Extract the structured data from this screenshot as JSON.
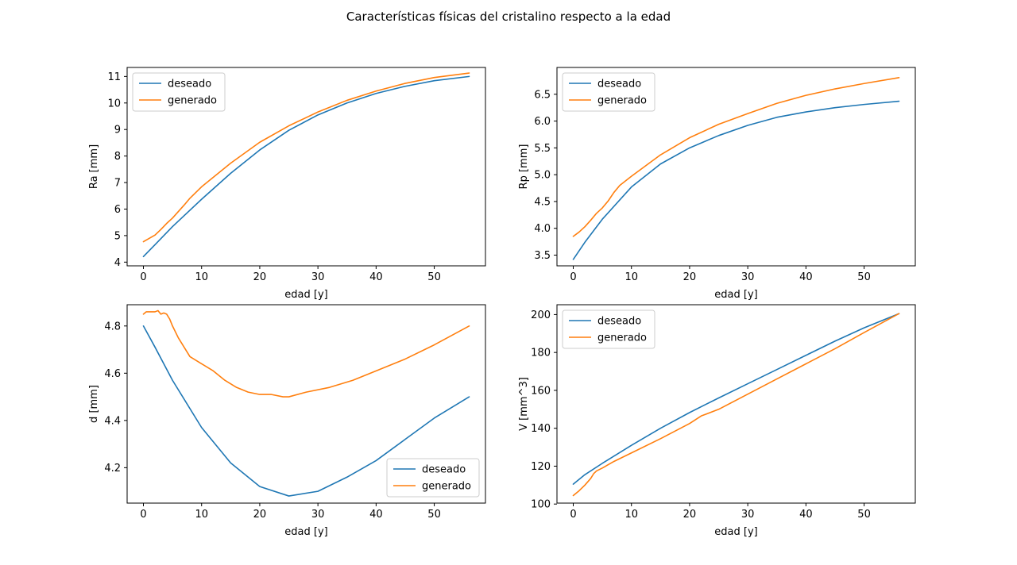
{
  "figure": {
    "title": "Características físicas del cristalino respecto a la edad"
  },
  "colors": {
    "deseado": "#1f77b4",
    "generado": "#ff7f0e"
  },
  "chart_data": [
    {
      "type": "line",
      "xlabel": "edad [y]",
      "ylabel": "Ra [mm]",
      "xlim": [
        -2.8,
        58.8
      ],
      "ylim": [
        3.86,
        11.34
      ],
      "xticks": [
        0,
        10,
        20,
        30,
        40,
        50
      ],
      "yticks": [
        4,
        5,
        6,
        7,
        8,
        9,
        10,
        11
      ],
      "ytick_labels": [
        "4",
        "5",
        "6",
        "7",
        "8",
        "9",
        "10",
        "11"
      ],
      "legend": "upper-left",
      "series": [
        {
          "name": "deseado",
          "color": "#1f77b4",
          "points": [
            [
              0,
              4.21
            ],
            [
              2,
              4.66
            ],
            [
              5,
              5.34
            ],
            [
              10,
              6.37
            ],
            [
              15,
              7.35
            ],
            [
              20,
              8.23
            ],
            [
              25,
              8.97
            ],
            [
              30,
              9.55
            ],
            [
              35,
              10.0
            ],
            [
              40,
              10.36
            ],
            [
              45,
              10.63
            ],
            [
              50,
              10.84
            ],
            [
              56,
              11.0
            ]
          ]
        },
        {
          "name": "generado",
          "color": "#ff7f0e",
          "points": [
            [
              0,
              4.77
            ],
            [
              2,
              5.02
            ],
            [
              3,
              5.23
            ],
            [
              4,
              5.46
            ],
            [
              5,
              5.66
            ],
            [
              7,
              6.15
            ],
            [
              8,
              6.41
            ],
            [
              10,
              6.84
            ],
            [
              15,
              7.73
            ],
            [
              20,
              8.52
            ],
            [
              25,
              9.14
            ],
            [
              30,
              9.66
            ],
            [
              35,
              10.1
            ],
            [
              40,
              10.45
            ],
            [
              45,
              10.74
            ],
            [
              50,
              10.96
            ],
            [
              56,
              11.13
            ]
          ]
        }
      ]
    },
    {
      "type": "line",
      "xlabel": "edad [y]",
      "ylabel": "Rp [mm]",
      "xlim": [
        -2.8,
        58.8
      ],
      "ylim": [
        3.3,
        7.0
      ],
      "xticks": [
        0,
        10,
        20,
        30,
        40,
        50
      ],
      "yticks": [
        3.5,
        4.0,
        4.5,
        5.0,
        5.5,
        6.0,
        6.5
      ],
      "ytick_labels": [
        "3.5",
        "4.0",
        "4.5",
        "5.0",
        "5.5",
        "6.0",
        "6.5"
      ],
      "legend": "upper-left",
      "series": [
        {
          "name": "deseado",
          "color": "#1f77b4",
          "points": [
            [
              0,
              3.42
            ],
            [
              2,
              3.74
            ],
            [
              5,
              4.17
            ],
            [
              10,
              4.77
            ],
            [
              15,
              5.2
            ],
            [
              20,
              5.5
            ],
            [
              25,
              5.73
            ],
            [
              30,
              5.92
            ],
            [
              35,
              6.07
            ],
            [
              40,
              6.17
            ],
            [
              45,
              6.25
            ],
            [
              50,
              6.31
            ],
            [
              56,
              6.37
            ]
          ]
        },
        {
          "name": "generado",
          "color": "#ff7f0e",
          "points": [
            [
              0,
              3.85
            ],
            [
              1,
              3.93
            ],
            [
              2,
              4.03
            ],
            [
              3,
              4.15
            ],
            [
              4,
              4.28
            ],
            [
              5,
              4.38
            ],
            [
              6,
              4.51
            ],
            [
              7,
              4.67
            ],
            [
              8,
              4.8
            ],
            [
              10,
              4.97
            ],
            [
              15,
              5.37
            ],
            [
              20,
              5.69
            ],
            [
              25,
              5.94
            ],
            [
              30,
              6.14
            ],
            [
              35,
              6.33
            ],
            [
              40,
              6.48
            ],
            [
              45,
              6.6
            ],
            [
              50,
              6.7
            ],
            [
              56,
              6.81
            ]
          ]
        }
      ]
    },
    {
      "type": "line",
      "xlabel": "edad [y]",
      "ylabel": "d [mm]",
      "xlim": [
        -2.8,
        58.8
      ],
      "ylim": [
        4.05,
        4.89
      ],
      "xticks": [
        0,
        10,
        20,
        30,
        40,
        50
      ],
      "yticks": [
        4.2,
        4.4,
        4.6,
        4.8
      ],
      "ytick_labels": [
        "4.2",
        "4.4",
        "4.6",
        "4.8"
      ],
      "legend": "lower-right",
      "series": [
        {
          "name": "deseado",
          "color": "#1f77b4",
          "points": [
            [
              0,
              4.8
            ],
            [
              2,
              4.71
            ],
            [
              5,
              4.57
            ],
            [
              10,
              4.37
            ],
            [
              15,
              4.22
            ],
            [
              20,
              4.12
            ],
            [
              25,
              4.08
            ],
            [
              30,
              4.1
            ],
            [
              35,
              4.16
            ],
            [
              40,
              4.23
            ],
            [
              45,
              4.32
            ],
            [
              50,
              4.41
            ],
            [
              56,
              4.5
            ]
          ]
        },
        {
          "name": "generado",
          "color": "#ff7f0e",
          "points": [
            [
              0,
              4.85
            ],
            [
              0.5,
              4.86
            ],
            [
              1,
              4.86
            ],
            [
              2,
              4.86
            ],
            [
              2.5,
              4.865
            ],
            [
              3,
              4.85
            ],
            [
              3.5,
              4.855
            ],
            [
              4,
              4.85
            ],
            [
              4.5,
              4.83
            ],
            [
              5,
              4.8
            ],
            [
              6,
              4.75
            ],
            [
              7,
              4.71
            ],
            [
              8,
              4.67
            ],
            [
              10,
              4.64
            ],
            [
              12,
              4.61
            ],
            [
              14,
              4.57
            ],
            [
              16,
              4.54
            ],
            [
              18,
              4.52
            ],
            [
              20,
              4.51
            ],
            [
              22,
              4.51
            ],
            [
              24,
              4.5
            ],
            [
              25,
              4.5
            ],
            [
              28,
              4.52
            ],
            [
              32,
              4.54
            ],
            [
              36,
              4.57
            ],
            [
              40,
              4.61
            ],
            [
              45,
              4.66
            ],
            [
              50,
              4.72
            ],
            [
              56,
              4.8
            ]
          ]
        }
      ]
    },
    {
      "type": "line",
      "xlabel": "edad [y]",
      "ylabel": "V [mm^3]",
      "xlim": [
        -2.8,
        58.8
      ],
      "ylim": [
        100.5,
        205.2
      ],
      "xticks": [
        0,
        10,
        20,
        30,
        40,
        50
      ],
      "yticks": [
        100,
        120,
        140,
        160,
        180,
        200
      ],
      "ytick_labels": [
        "100",
        "120",
        "140",
        "160",
        "180",
        "200"
      ],
      "legend": "upper-left",
      "series": [
        {
          "name": "deseado",
          "color": "#1f77b4",
          "points": [
            [
              0,
              110.5
            ],
            [
              2,
              115.5
            ],
            [
              5,
              121.5
            ],
            [
              10,
              131
            ],
            [
              15,
              140
            ],
            [
              20,
              148.3
            ],
            [
              25,
              156
            ],
            [
              30,
              163.5
            ],
            [
              35,
              171
            ],
            [
              40,
              178.5
            ],
            [
              45,
              186
            ],
            [
              50,
              193
            ],
            [
              56,
              200.5
            ]
          ]
        },
        {
          "name": "generado",
          "color": "#ff7f0e",
          "points": [
            [
              0,
              104.5
            ],
            [
              1,
              107
            ],
            [
              2,
              110
            ],
            [
              3,
              113.5
            ],
            [
              3.5,
              116
            ],
            [
              4,
              117.5
            ],
            [
              5,
              119
            ],
            [
              7,
              122.5
            ],
            [
              10,
              127
            ],
            [
              15,
              134.5
            ],
            [
              20,
              142.5
            ],
            [
              22,
              146.5
            ],
            [
              25,
              150
            ],
            [
              30,
              158
            ],
            [
              35,
              166
            ],
            [
              40,
              174
            ],
            [
              45,
              182
            ],
            [
              50,
              190.5
            ],
            [
              56,
              200.5
            ]
          ]
        }
      ]
    }
  ]
}
